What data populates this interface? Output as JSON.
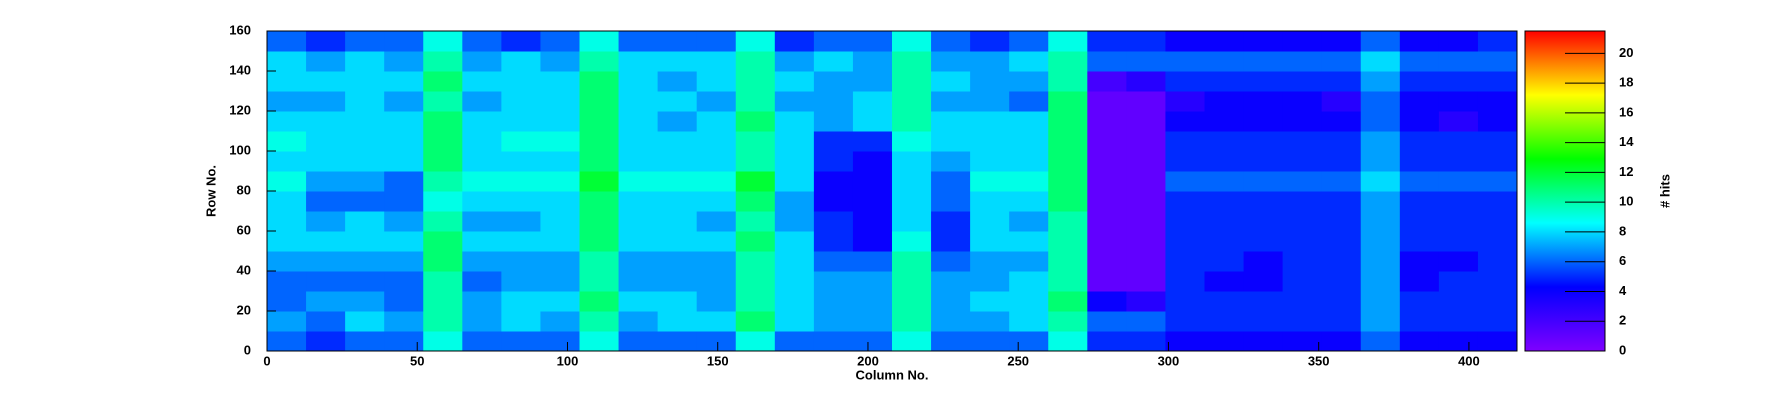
{
  "chart_data": {
    "type": "heatmap",
    "x_label": "Column No.",
    "y_label": "Row No.",
    "z_label": "# hits",
    "xbins": [
      0,
      13,
      26,
      39,
      52,
      65,
      78,
      91,
      104,
      117,
      130,
      143,
      156,
      169,
      182,
      195,
      208,
      221,
      234,
      247,
      260,
      273,
      286,
      299,
      312,
      325,
      338,
      351,
      364,
      377,
      390,
      403,
      416
    ],
    "ybins": [
      0,
      10,
      20,
      30,
      40,
      50,
      60,
      70,
      80,
      90,
      100,
      110,
      120,
      130,
      140,
      150,
      160
    ],
    "values": [
      [
        6,
        5,
        6,
        6,
        9,
        6,
        6,
        6,
        9,
        6,
        6,
        6,
        9,
        6,
        6,
        6,
        9,
        6,
        6,
        6,
        9,
        5,
        5,
        4,
        4,
        4,
        4,
        4,
        6,
        4,
        4,
        4
      ],
      [
        7,
        6,
        8,
        7,
        10,
        7,
        8,
        7,
        10,
        7,
        8,
        8,
        11,
        8,
        7,
        7,
        10,
        7,
        7,
        8,
        10,
        6,
        6,
        5,
        5,
        5,
        5,
        5,
        7,
        5,
        5,
        5
      ],
      [
        6,
        7,
        7,
        6,
        10,
        7,
        8,
        8,
        11,
        8,
        8,
        7,
        10,
        8,
        7,
        7,
        10,
        7,
        8,
        8,
        11,
        4,
        3,
        5,
        5,
        5,
        5,
        5,
        7,
        5,
        5,
        5
      ],
      [
        6,
        6,
        6,
        6,
        10,
        6,
        7,
        7,
        10,
        7,
        7,
        7,
        10,
        8,
        7,
        7,
        10,
        7,
        7,
        8,
        10,
        1,
        1,
        5,
        4,
        4,
        5,
        5,
        7,
        4,
        5,
        5
      ],
      [
        7,
        7,
        7,
        7,
        11,
        7,
        7,
        7,
        10,
        7,
        7,
        7,
        10,
        8,
        6,
        6,
        10,
        6,
        7,
        7,
        10,
        1,
        1,
        5,
        5,
        4,
        5,
        5,
        7,
        4,
        4,
        5
      ],
      [
        8,
        8,
        8,
        8,
        11,
        8,
        8,
        8,
        11,
        8,
        8,
        8,
        11,
        8,
        5,
        4,
        9,
        5,
        8,
        8,
        10,
        1,
        1,
        5,
        5,
        5,
        5,
        5,
        7,
        5,
        5,
        5
      ],
      [
        8,
        7,
        8,
        7,
        10,
        7,
        7,
        8,
        11,
        8,
        8,
        7,
        10,
        7,
        5,
        4,
        8,
        5,
        8,
        7,
        10,
        1,
        1,
        5,
        5,
        5,
        5,
        5,
        7,
        5,
        5,
        5
      ],
      [
        8,
        6,
        6,
        6,
        9,
        8,
        8,
        8,
        11,
        8,
        8,
        8,
        11,
        7,
        4,
        4,
        8,
        6,
        8,
        8,
        11,
        1,
        1,
        5,
        5,
        5,
        5,
        5,
        7,
        5,
        5,
        5
      ],
      [
        9,
        7,
        7,
        6,
        10,
        9,
        9,
        9,
        12,
        9,
        9,
        9,
        12,
        8,
        4,
        4,
        8,
        6,
        9,
        9,
        11,
        1,
        1,
        6,
        6,
        6,
        6,
        6,
        8,
        6,
        6,
        6
      ],
      [
        8,
        8,
        8,
        8,
        11,
        8,
        8,
        8,
        11,
        8,
        8,
        8,
        10,
        8,
        5,
        4,
        8,
        7,
        8,
        8,
        11,
        1,
        1,
        5,
        5,
        5,
        5,
        5,
        7,
        5,
        5,
        5
      ],
      [
        9,
        8,
        8,
        8,
        11,
        8,
        9,
        9,
        11,
        8,
        8,
        8,
        10,
        8,
        5,
        5,
        9,
        8,
        8,
        8,
        11,
        1,
        1,
        5,
        5,
        5,
        5,
        5,
        7,
        5,
        5,
        5
      ],
      [
        8,
        8,
        8,
        8,
        11,
        8,
        8,
        8,
        11,
        8,
        7,
        8,
        11,
        8,
        7,
        8,
        10,
        8,
        8,
        8,
        11,
        1,
        1,
        4,
        4,
        4,
        4,
        4,
        6,
        4,
        3,
        4
      ],
      [
        7,
        7,
        8,
        7,
        10,
        7,
        8,
        8,
        11,
        8,
        8,
        7,
        10,
        7,
        7,
        8,
        10,
        7,
        7,
        6,
        11,
        1,
        1,
        3,
        4,
        4,
        4,
        3,
        6,
        4,
        4,
        4
      ],
      [
        8,
        8,
        8,
        8,
        11,
        8,
        8,
        8,
        11,
        8,
        7,
        8,
        10,
        8,
        7,
        7,
        10,
        8,
        7,
        7,
        10,
        2,
        3,
        5,
        5,
        5,
        5,
        5,
        7,
        5,
        5,
        5
      ],
      [
        8,
        7,
        8,
        7,
        10,
        7,
        8,
        7,
        10,
        8,
        8,
        8,
        10,
        7,
        8,
        7,
        10,
        7,
        7,
        8,
        10,
        6,
        6,
        6,
        6,
        6,
        6,
        6,
        8,
        6,
        6,
        6
      ],
      [
        6,
        5,
        6,
        6,
        9,
        6,
        5,
        6,
        9,
        6,
        6,
        6,
        9,
        5,
        6,
        6,
        9,
        6,
        5,
        6,
        9,
        5,
        5,
        4,
        4,
        4,
        4,
        4,
        6,
        4,
        4,
        5
      ]
    ],
    "xlim": [
      0,
      416
    ],
    "xticks": [
      0,
      50,
      100,
      150,
      200,
      250,
      300,
      350,
      400
    ],
    "ylim": [
      0,
      160
    ],
    "yticks": [
      0,
      20,
      40,
      60,
      80,
      100,
      120,
      140,
      160
    ],
    "zlim": [
      0,
      21.5
    ],
    "zticks": [
      0,
      2,
      4,
      6,
      8,
      10,
      12,
      14,
      16,
      18,
      20
    ],
    "colorscale": [
      "#7f00ff",
      "#0000ff",
      "#00ffff",
      "#00ff00",
      "#ffff00",
      "#ff0000"
    ]
  }
}
